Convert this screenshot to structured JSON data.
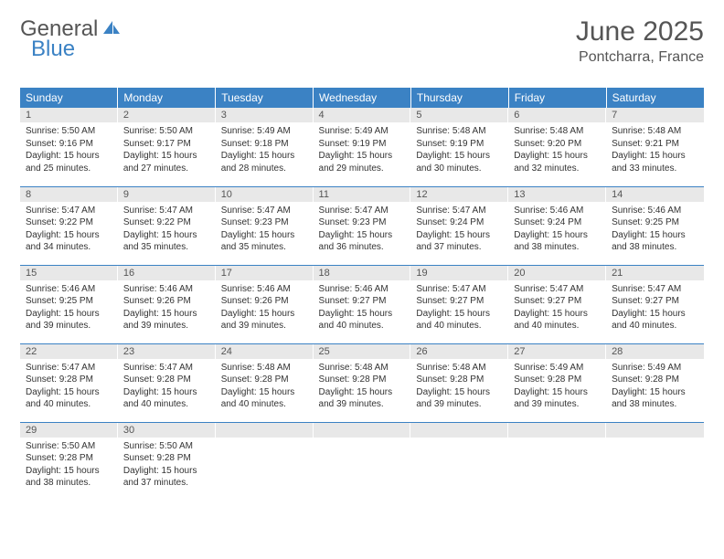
{
  "brand": {
    "part1": "General",
    "part2": "Blue"
  },
  "title": "June 2025",
  "location": "Pontcharra, France",
  "colors": {
    "header_bg": "#3b82c4",
    "header_text": "#ffffff",
    "daynum_bg": "#e8e8e8",
    "row_border": "#3b82c4",
    "text": "#333333",
    "title_text": "#555555"
  },
  "fonts": {
    "title_size_pt": 22,
    "location_size_pt": 12,
    "weekday_size_pt": 9,
    "daynum_size_pt": 8,
    "cell_size_pt": 7.5
  },
  "weekdays": [
    "Sunday",
    "Monday",
    "Tuesday",
    "Wednesday",
    "Thursday",
    "Friday",
    "Saturday"
  ],
  "cells": [
    {
      "day": "1",
      "line1": "Sunrise: 5:50 AM",
      "line2": "Sunset: 9:16 PM",
      "line3": "Daylight: 15 hours",
      "line4": "and 25 minutes."
    },
    {
      "day": "2",
      "line1": "Sunrise: 5:50 AM",
      "line2": "Sunset: 9:17 PM",
      "line3": "Daylight: 15 hours",
      "line4": "and 27 minutes."
    },
    {
      "day": "3",
      "line1": "Sunrise: 5:49 AM",
      "line2": "Sunset: 9:18 PM",
      "line3": "Daylight: 15 hours",
      "line4": "and 28 minutes."
    },
    {
      "day": "4",
      "line1": "Sunrise: 5:49 AM",
      "line2": "Sunset: 9:19 PM",
      "line3": "Daylight: 15 hours",
      "line4": "and 29 minutes."
    },
    {
      "day": "5",
      "line1": "Sunrise: 5:48 AM",
      "line2": "Sunset: 9:19 PM",
      "line3": "Daylight: 15 hours",
      "line4": "and 30 minutes."
    },
    {
      "day": "6",
      "line1": "Sunrise: 5:48 AM",
      "line2": "Sunset: 9:20 PM",
      "line3": "Daylight: 15 hours",
      "line4": "and 32 minutes."
    },
    {
      "day": "7",
      "line1": "Sunrise: 5:48 AM",
      "line2": "Sunset: 9:21 PM",
      "line3": "Daylight: 15 hours",
      "line4": "and 33 minutes."
    },
    {
      "day": "8",
      "line1": "Sunrise: 5:47 AM",
      "line2": "Sunset: 9:22 PM",
      "line3": "Daylight: 15 hours",
      "line4": "and 34 minutes."
    },
    {
      "day": "9",
      "line1": "Sunrise: 5:47 AM",
      "line2": "Sunset: 9:22 PM",
      "line3": "Daylight: 15 hours",
      "line4": "and 35 minutes."
    },
    {
      "day": "10",
      "line1": "Sunrise: 5:47 AM",
      "line2": "Sunset: 9:23 PM",
      "line3": "Daylight: 15 hours",
      "line4": "and 35 minutes."
    },
    {
      "day": "11",
      "line1": "Sunrise: 5:47 AM",
      "line2": "Sunset: 9:23 PM",
      "line3": "Daylight: 15 hours",
      "line4": "and 36 minutes."
    },
    {
      "day": "12",
      "line1": "Sunrise: 5:47 AM",
      "line2": "Sunset: 9:24 PM",
      "line3": "Daylight: 15 hours",
      "line4": "and 37 minutes."
    },
    {
      "day": "13",
      "line1": "Sunrise: 5:46 AM",
      "line2": "Sunset: 9:24 PM",
      "line3": "Daylight: 15 hours",
      "line4": "and 38 minutes."
    },
    {
      "day": "14",
      "line1": "Sunrise: 5:46 AM",
      "line2": "Sunset: 9:25 PM",
      "line3": "Daylight: 15 hours",
      "line4": "and 38 minutes."
    },
    {
      "day": "15",
      "line1": "Sunrise: 5:46 AM",
      "line2": "Sunset: 9:25 PM",
      "line3": "Daylight: 15 hours",
      "line4": "and 39 minutes."
    },
    {
      "day": "16",
      "line1": "Sunrise: 5:46 AM",
      "line2": "Sunset: 9:26 PM",
      "line3": "Daylight: 15 hours",
      "line4": "and 39 minutes."
    },
    {
      "day": "17",
      "line1": "Sunrise: 5:46 AM",
      "line2": "Sunset: 9:26 PM",
      "line3": "Daylight: 15 hours",
      "line4": "and 39 minutes."
    },
    {
      "day": "18",
      "line1": "Sunrise: 5:46 AM",
      "line2": "Sunset: 9:27 PM",
      "line3": "Daylight: 15 hours",
      "line4": "and 40 minutes."
    },
    {
      "day": "19",
      "line1": "Sunrise: 5:47 AM",
      "line2": "Sunset: 9:27 PM",
      "line3": "Daylight: 15 hours",
      "line4": "and 40 minutes."
    },
    {
      "day": "20",
      "line1": "Sunrise: 5:47 AM",
      "line2": "Sunset: 9:27 PM",
      "line3": "Daylight: 15 hours",
      "line4": "and 40 minutes."
    },
    {
      "day": "21",
      "line1": "Sunrise: 5:47 AM",
      "line2": "Sunset: 9:27 PM",
      "line3": "Daylight: 15 hours",
      "line4": "and 40 minutes."
    },
    {
      "day": "22",
      "line1": "Sunrise: 5:47 AM",
      "line2": "Sunset: 9:28 PM",
      "line3": "Daylight: 15 hours",
      "line4": "and 40 minutes."
    },
    {
      "day": "23",
      "line1": "Sunrise: 5:47 AM",
      "line2": "Sunset: 9:28 PM",
      "line3": "Daylight: 15 hours",
      "line4": "and 40 minutes."
    },
    {
      "day": "24",
      "line1": "Sunrise: 5:48 AM",
      "line2": "Sunset: 9:28 PM",
      "line3": "Daylight: 15 hours",
      "line4": "and 40 minutes."
    },
    {
      "day": "25",
      "line1": "Sunrise: 5:48 AM",
      "line2": "Sunset: 9:28 PM",
      "line3": "Daylight: 15 hours",
      "line4": "and 39 minutes."
    },
    {
      "day": "26",
      "line1": "Sunrise: 5:48 AM",
      "line2": "Sunset: 9:28 PM",
      "line3": "Daylight: 15 hours",
      "line4": "and 39 minutes."
    },
    {
      "day": "27",
      "line1": "Sunrise: 5:49 AM",
      "line2": "Sunset: 9:28 PM",
      "line3": "Daylight: 15 hours",
      "line4": "and 39 minutes."
    },
    {
      "day": "28",
      "line1": "Sunrise: 5:49 AM",
      "line2": "Sunset: 9:28 PM",
      "line3": "Daylight: 15 hours",
      "line4": "and 38 minutes."
    },
    {
      "day": "29",
      "line1": "Sunrise: 5:50 AM",
      "line2": "Sunset: 9:28 PM",
      "line3": "Daylight: 15 hours",
      "line4": "and 38 minutes."
    },
    {
      "day": "30",
      "line1": "Sunrise: 5:50 AM",
      "line2": "Sunset: 9:28 PM",
      "line3": "Daylight: 15 hours",
      "line4": "and 37 minutes."
    }
  ]
}
